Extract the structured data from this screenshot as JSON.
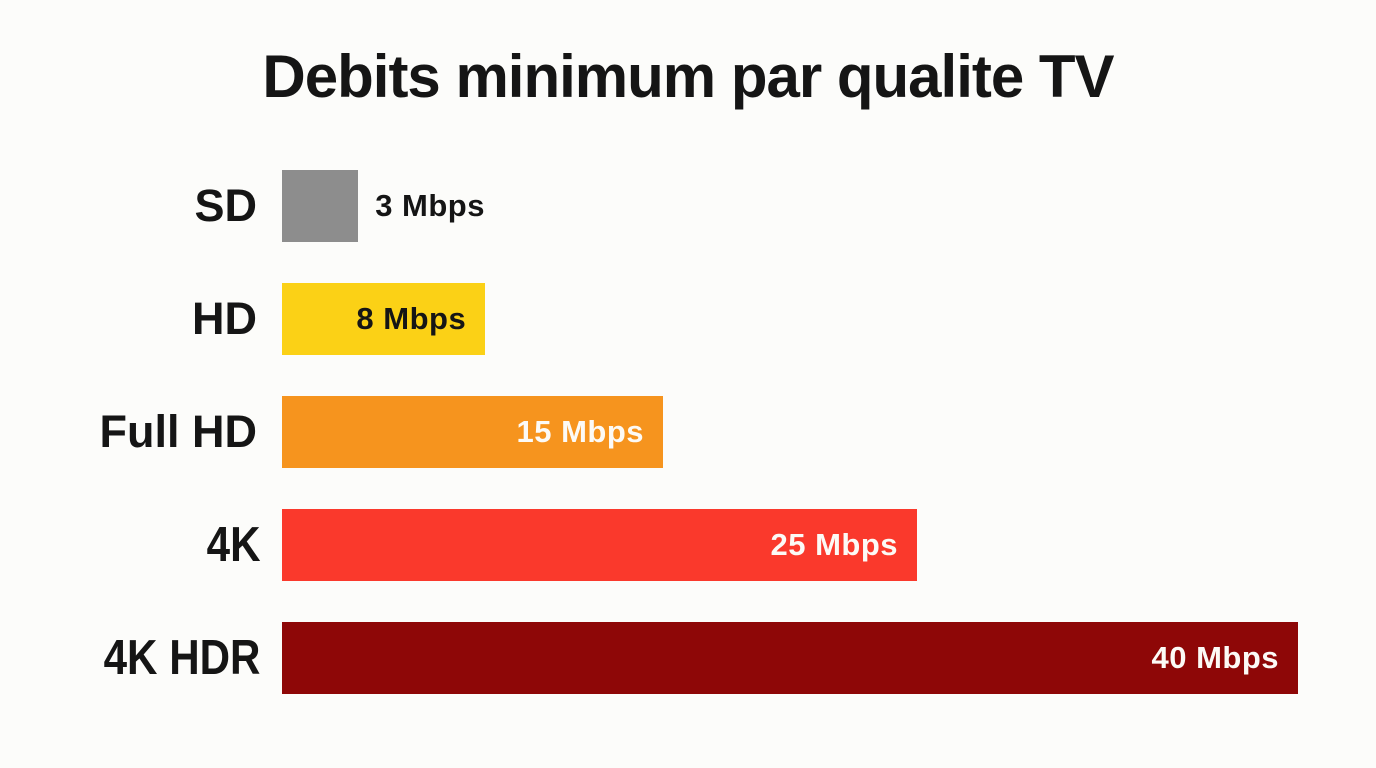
{
  "page": {
    "background": "#FCFCFA",
    "text_color": "#151515"
  },
  "chart_data": {
    "type": "bar",
    "orientation": "horizontal",
    "title": "Debits minimum par qualite TV",
    "unit": "Mbps",
    "xlim": [
      0,
      40
    ],
    "grid": false,
    "legend": false,
    "categories": [
      "SD",
      "HD",
      "Full HD",
      "4K",
      "4K HDR"
    ],
    "values": [
      3,
      8,
      15,
      25,
      40
    ],
    "bars": [
      {
        "category": "SD",
        "value": 3,
        "value_label": "3 Mbps",
        "color": "#8D8D8D",
        "label_inside": false,
        "value_label_color": "#151515",
        "condensed": false
      },
      {
        "category": "HD",
        "value": 8,
        "value_label": "8 Mbps",
        "color": "#FBD116",
        "label_inside": true,
        "value_label_color": "#151515",
        "condensed": false
      },
      {
        "category": "Full HD",
        "value": 15,
        "value_label": "15 Mbps",
        "color": "#F6941E",
        "label_inside": true,
        "value_label_color": "#FCFAF6",
        "condensed": false
      },
      {
        "category": "4K",
        "value": 25,
        "value_label": "25 Mbps",
        "color": "#FA392C",
        "label_inside": true,
        "value_label_color": "#FCFAF6",
        "condensed": true
      },
      {
        "category": "4K HDR",
        "value": 40,
        "value_label": "40 Mbps",
        "color": "#8E0707",
        "label_inside": true,
        "value_label_color": "#FCFAF6",
        "condensed": true
      }
    ]
  }
}
